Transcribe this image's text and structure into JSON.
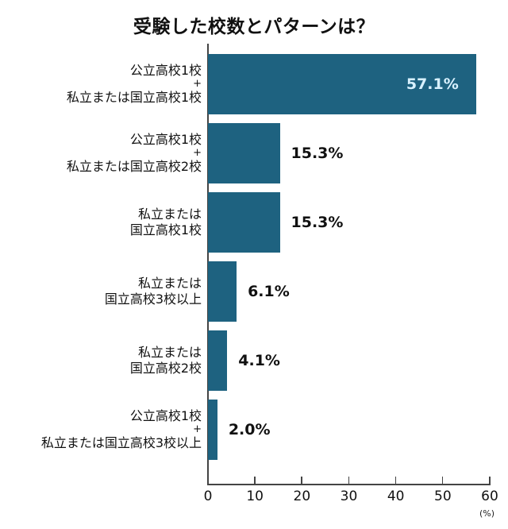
{
  "chart_data": {
    "type": "bar",
    "orientation": "horizontal",
    "title": "受験した校数とパターンは？",
    "xlabel": "",
    "ylabel": "",
    "unit_label": "(%)",
    "xlim": [
      0,
      60
    ],
    "xticks": [
      "0",
      "10",
      "20",
      "30",
      "40",
      "50",
      "60"
    ],
    "grid": false,
    "legend": null,
    "bar_color": "#1e6280",
    "categories": [
      [
        "公立高校1校",
        "+",
        "私立または国立高校1校"
      ],
      [
        "公立高校1校",
        "+",
        "私立または国立高校2校"
      ],
      [
        "私立または",
        "国立高校1校"
      ],
      [
        "私立または",
        "国立高校3校以上"
      ],
      [
        "私立または",
        "国立高校2校"
      ],
      [
        "公立高校1校",
        "+",
        "私立または国立高校3校以上"
      ]
    ],
    "values": [
      57.1,
      15.3,
      15.3,
      6.1,
      4.1,
      2.0
    ],
    "value_labels": [
      "57.1%",
      "15.3%",
      "15.3%",
      "6.1%",
      "4.1%",
      "2.0%"
    ]
  }
}
